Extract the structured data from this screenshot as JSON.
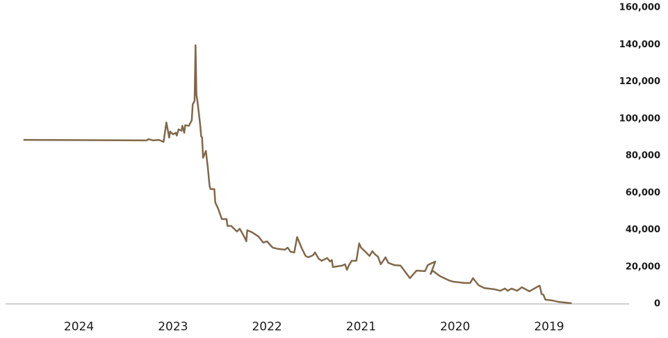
{
  "chart_data": {
    "type": "line",
    "x": [
      2024.59,
      2023.28,
      2023.26,
      2023.21,
      2023.15,
      2023.1,
      2023.07,
      2023.04,
      2023.03,
      2023.0,
      2022.97,
      2022.96,
      2022.94,
      2022.91,
      2022.9,
      2022.88,
      2022.87,
      2022.83,
      2022.8,
      2022.79,
      2022.77,
      2022.76,
      2022.75,
      2022.74,
      2022.71,
      2022.7,
      2022.69,
      2022.68,
      2022.65,
      2022.63,
      2022.61,
      2022.6,
      2022.56,
      2022.55,
      2022.52,
      2022.48,
      2022.43,
      2022.42,
      2022.38,
      2022.32,
      2022.29,
      2022.24,
      2022.22,
      2022.21,
      2022.16,
      2022.09,
      2022.04,
      2022.0,
      2021.94,
      2021.88,
      2021.81,
      2021.78,
      2021.75,
      2021.71,
      2021.68,
      2021.63,
      2021.59,
      2021.56,
      2021.51,
      2021.49,
      2021.45,
      2021.42,
      2021.36,
      2021.33,
      2021.31,
      2021.3,
      2021.2,
      2021.17,
      2021.15,
      2021.13,
      2021.1,
      2021.05,
      2021.02,
      2021.0,
      2020.96,
      2020.91,
      2020.88,
      2020.85,
      2020.82,
      2020.79,
      2020.74,
      2020.71,
      2020.65,
      2020.58,
      2020.48,
      2020.41,
      2020.32,
      2020.29,
      2020.21,
      2020.26,
      2020.24,
      2020.16,
      2020.07,
      2020.02,
      2019.9,
      2019.84,
      2019.81,
      2019.75,
      2019.69,
      2019.58,
      2019.52,
      2019.47,
      2019.44,
      2019.4,
      2019.34,
      2019.29,
      2019.21,
      2019.12,
      2019.1,
      2019.08,
      2019.06,
      2019.04,
      2018.97,
      2018.9,
      2018.76
    ],
    "series": [
      {
        "color": "#80684a",
        "values": [
          88600,
          88300,
          89000,
          88300,
          88600,
          87500,
          98000,
          89800,
          93100,
          91600,
          92400,
          90900,
          94300,
          93500,
          96200,
          92400,
          96500,
          96200,
          99200,
          107800,
          109700,
          139700,
          112700,
          109700,
          96500,
          90500,
          89800,
          78900,
          82600,
          74000,
          63500,
          62000,
          62000,
          54800,
          51500,
          45800,
          45800,
          42100,
          42100,
          39100,
          40600,
          36100,
          33800,
          39800,
          38700,
          36400,
          33100,
          33800,
          30400,
          29700,
          29300,
          30400,
          28200,
          27800,
          36100,
          30000,
          25900,
          25200,
          26300,
          27800,
          24400,
          23300,
          24800,
          22900,
          23700,
          19900,
          20700,
          21400,
          18400,
          20700,
          23300,
          23300,
          32700,
          30400,
          28500,
          25900,
          28500,
          26700,
          25500,
          21400,
          25200,
          22200,
          21000,
          20700,
          13900,
          18000,
          17700,
          21000,
          22900,
          16200,
          18000,
          15000,
          12800,
          12000,
          11300,
          11300,
          13900,
          10100,
          8600,
          7900,
          7100,
          8300,
          7100,
          8300,
          7100,
          9000,
          6800,
          9400,
          9800,
          5300,
          4900,
          2300,
          1900,
          1100,
          400
        ]
      }
    ],
    "xlim": [
      2024.78,
      2018.15
    ],
    "xticks": [
      2024,
      2023,
      2022,
      2021,
      2020,
      2019
    ],
    "ylim": [
      0,
      160000
    ],
    "yticks": [
      0,
      {
        "value": 20000,
        "label": "20,000"
      },
      {
        "value": 40000,
        "label": "40,000"
      },
      {
        "value": 60000,
        "label": "60,000"
      },
      {
        "value": 80000,
        "label": "80,000"
      },
      {
        "value": 100000,
        "label": "100,000"
      },
      {
        "value": 120000,
        "label": "120,000"
      },
      {
        "value": 140000,
        "label": "140,000"
      },
      {
        "value": 160000,
        "label": "160,000"
      }
    ]
  }
}
